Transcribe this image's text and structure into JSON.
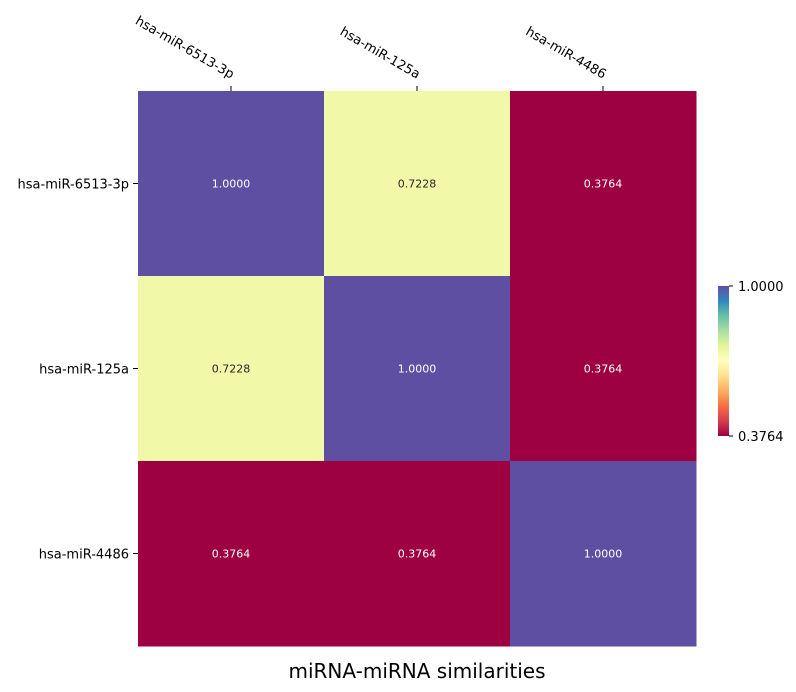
{
  "chart_data": {
    "type": "heatmap",
    "title": "",
    "xlabel": "miRNA-miRNA similarities",
    "ylabel": "",
    "x_categories": [
      "hsa-miR-6513-3p",
      "hsa-miR-125a",
      "hsa-miR-4486"
    ],
    "y_categories": [
      "hsa-miR-6513-3p",
      "hsa-miR-125a",
      "hsa-miR-4486"
    ],
    "values": [
      [
        1.0,
        0.7228,
        0.3764
      ],
      [
        0.7228,
        1.0,
        0.3764
      ],
      [
        0.3764,
        0.3764,
        1.0
      ]
    ],
    "value_labels": [
      [
        "1.0000",
        "0.7228",
        "0.3764"
      ],
      [
        "0.7228",
        "1.0000",
        "0.3764"
      ],
      [
        "0.3764",
        "0.3764",
        "1.0000"
      ]
    ],
    "colormap": "Spectral",
    "vmin": 0.3764,
    "vmax": 1.0,
    "x_axis_position": "top",
    "colorbar": {
      "position": "right",
      "tick_labels": [
        "1.0000",
        "0.3764"
      ],
      "tick_values": [
        1.0,
        0.3764
      ]
    },
    "grid": false,
    "colors": {
      "high": "#5e4fa2",
      "mid": "#eff8a5",
      "low": "#9e0142"
    }
  }
}
